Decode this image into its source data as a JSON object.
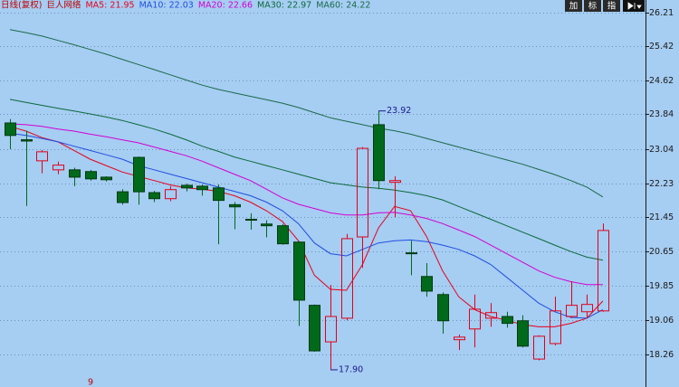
{
  "chart_data": {
    "type": "candlestick",
    "header": [
      "日线(复权)",
      "巨人网络"
    ],
    "header_color": "#c00000",
    "buttons": [
      "加",
      "标",
      "指"
    ],
    "ylim": [
      17.5,
      26.5
    ],
    "yticks": [
      26.21,
      25.42,
      24.62,
      23.84,
      23.04,
      22.23,
      21.45,
      20.65,
      19.85,
      19.06,
      18.26
    ],
    "grid": true,
    "up_color": "#e0001a",
    "down_color": "#006a1a",
    "open": [
      23.64,
      23.25,
      22.76,
      22.55,
      22.55,
      22.51,
      22.38,
      22.04,
      22.84,
      22.02,
      21.88,
      22.19,
      22.17,
      22.13,
      21.74,
      21.4,
      21.29,
      21.25,
      20.87,
      19.4,
      18.55,
      19.1,
      20.99,
      23.6,
      22.26,
      20.62,
      20.07,
      19.65,
      18.6,
      18.85,
      19.1,
      19.14,
      19.04,
      18.15,
      18.51,
      19.14,
      19.25,
      19.27
    ],
    "high": [
      23.73,
      23.46,
      23.01,
      22.74,
      22.6,
      22.55,
      22.4,
      22.1,
      22.86,
      22.06,
      22.17,
      22.23,
      22.21,
      22.21,
      21.8,
      21.54,
      21.38,
      21.29,
      20.89,
      19.42,
      19.87,
      21.06,
      23.08,
      23.92,
      22.4,
      20.9,
      20.38,
      19.7,
      18.72,
      19.65,
      19.45,
      19.25,
      19.17,
      18.7,
      19.6,
      19.96,
      19.65,
      21.3
    ],
    "low": [
      23.03,
      21.71,
      22.47,
      22.45,
      22.17,
      22.3,
      22.28,
      21.74,
      21.74,
      21.8,
      21.82,
      22.05,
      21.95,
      20.82,
      21.17,
      21.16,
      20.98,
      20.81,
      18.92,
      18.32,
      17.9,
      19.05,
      20.27,
      22.1,
      21.45,
      20.1,
      19.6,
      18.74,
      18.36,
      18.42,
      18.9,
      18.88,
      18.42,
      18.12,
      18.47,
      19.1,
      19.1,
      19.25
    ],
    "close": [
      23.35,
      23.22,
      22.97,
      22.66,
      22.38,
      22.34,
      22.32,
      21.79,
      22.04,
      21.88,
      22.09,
      22.13,
      22.09,
      21.84,
      21.69,
      21.39,
      21.25,
      20.83,
      19.52,
      18.34,
      19.14,
      20.95,
      23.05,
      22.3,
      22.3,
      20.6,
      19.73,
      19.04,
      18.66,
      19.31,
      19.23,
      18.98,
      18.45,
      18.68,
      19.27,
      19.4,
      19.42,
      21.14
    ],
    "series": [
      {
        "legend": "MA5: 21.95",
        "color": "#e8001c",
        "values": [
          23.56,
          23.45,
          23.3,
          23.2,
          23.0,
          22.8,
          22.65,
          22.5,
          22.4,
          22.3,
          22.2,
          22.13,
          22.1,
          22.05,
          21.95,
          21.8,
          21.6,
          21.35,
          20.9,
          20.1,
          19.77,
          19.75,
          20.35,
          21.2,
          21.7,
          21.6,
          21.0,
          20.2,
          19.6,
          19.3,
          19.14,
          19.05,
          18.95,
          18.9,
          18.9,
          18.98,
          19.1,
          19.5
        ]
      },
      {
        "legend": "MA10: 22.03",
        "color": "#1f4fe0",
        "values": [
          23.4,
          23.35,
          23.28,
          23.2,
          23.1,
          23.0,
          22.9,
          22.8,
          22.65,
          22.55,
          22.45,
          22.35,
          22.25,
          22.15,
          22.05,
          21.95,
          21.8,
          21.6,
          21.3,
          20.85,
          20.6,
          20.55,
          20.7,
          20.85,
          20.9,
          20.92,
          20.88,
          20.8,
          20.7,
          20.55,
          20.35,
          20.05,
          19.75,
          19.45,
          19.25,
          19.12,
          19.1,
          19.3
        ]
      },
      {
        "legend": "MA20: 22.66",
        "color": "#d200d2",
        "values": [
          23.62,
          23.6,
          23.56,
          23.5,
          23.45,
          23.38,
          23.32,
          23.25,
          23.18,
          23.08,
          22.98,
          22.88,
          22.75,
          22.6,
          22.45,
          22.3,
          22.1,
          21.9,
          21.75,
          21.65,
          21.55,
          21.5,
          21.5,
          21.55,
          21.56,
          21.5,
          21.42,
          21.3,
          21.15,
          21.0,
          20.8,
          20.6,
          20.4,
          20.2,
          20.05,
          19.95,
          19.88,
          19.88
        ]
      },
      {
        "legend": "MA30: 22.97",
        "color": "#0a6a3a",
        "values": [
          24.19,
          24.12,
          24.05,
          23.98,
          23.92,
          23.85,
          23.78,
          23.7,
          23.6,
          23.5,
          23.38,
          23.25,
          23.1,
          22.98,
          22.85,
          22.75,
          22.65,
          22.55,
          22.45,
          22.35,
          22.25,
          22.2,
          22.15,
          22.12,
          22.08,
          22.02,
          21.95,
          21.85,
          21.7,
          21.55,
          21.4,
          21.25,
          21.1,
          20.95,
          20.8,
          20.65,
          20.52,
          20.45
        ]
      },
      {
        "legend": "MA60: 24.22",
        "color": "#1a6a4a",
        "values": [
          25.81,
          25.74,
          25.66,
          25.56,
          25.46,
          25.35,
          25.24,
          25.12,
          25.0,
          24.88,
          24.76,
          24.64,
          24.52,
          24.42,
          24.34,
          24.26,
          24.18,
          24.1,
          24.0,
          23.88,
          23.76,
          23.68,
          23.6,
          23.52,
          23.46,
          23.38,
          23.28,
          23.18,
          23.08,
          22.98,
          22.88,
          22.78,
          22.68,
          22.56,
          22.44,
          22.3,
          22.15,
          21.92
        ]
      }
    ],
    "high_label": 23.92,
    "low_label": {
      "value": 17.9,
      "label": "17.90"
    },
    "footer_mark": "9"
  }
}
